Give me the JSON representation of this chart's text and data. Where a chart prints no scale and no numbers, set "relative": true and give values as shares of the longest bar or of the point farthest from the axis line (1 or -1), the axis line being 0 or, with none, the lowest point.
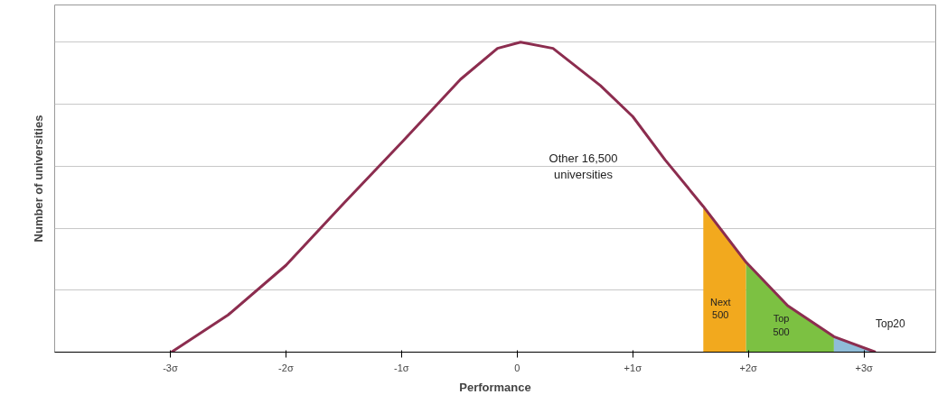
{
  "chart_data": {
    "type": "line",
    "relative": true,
    "xlabel": "Performance",
    "ylabel": "Number of universities",
    "annotations": [
      "Other 16,500 universities"
    ],
    "xlim": [
      -4,
      3.62
    ],
    "xticks": [
      {
        "value": -3,
        "label": "-3σ"
      },
      {
        "value": -2,
        "label": "-2σ"
      },
      {
        "value": -1,
        "label": "-1σ"
      },
      0,
      {
        "value": 1,
        "label": "+1σ"
      },
      {
        "value": 2,
        "label": "+2σ"
      },
      {
        "value": 3,
        "label": "+3σ"
      }
    ],
    "grid": "y",
    "marker": "none",
    "line_style": "solid",
    "series": [
      {
        "color": "#8c2d4f",
        "x": [
          -2.99,
          -2.5,
          -2.0,
          -1.5,
          -0.99,
          -0.49,
          -0.17,
          0.03,
          0.31,
          0.72,
          1.0,
          1.28,
          1.61,
          1.98,
          2.34,
          2.74,
          3.1
        ],
        "values": [
          0,
          0.12,
          0.28,
          0.48,
          0.68,
          0.88,
          0.98,
          1,
          0.98,
          0.86,
          0.76,
          0.62,
          0.47,
          0.29,
          0.15,
          0.05,
          0
        ]
      },
      {
        "type": "area",
        "name": "Next 500",
        "color": "#f2a91e",
        "x": [
          1.61,
          1.8,
          1.98
        ],
        "values": [
          0.47,
          0.38,
          0.29
        ]
      },
      {
        "type": "area",
        "name": "Top 500",
        "color": "#7cc142",
        "x": [
          1.98,
          2.34,
          2.74
        ],
        "values": [
          0.29,
          0.15,
          0.05
        ]
      },
      {
        "type": "area",
        "name": "Top20",
        "color": "#8fbcd8",
        "x": [
          2.74,
          3.1
        ],
        "values": [
          0.05,
          0
        ]
      }
    ]
  }
}
